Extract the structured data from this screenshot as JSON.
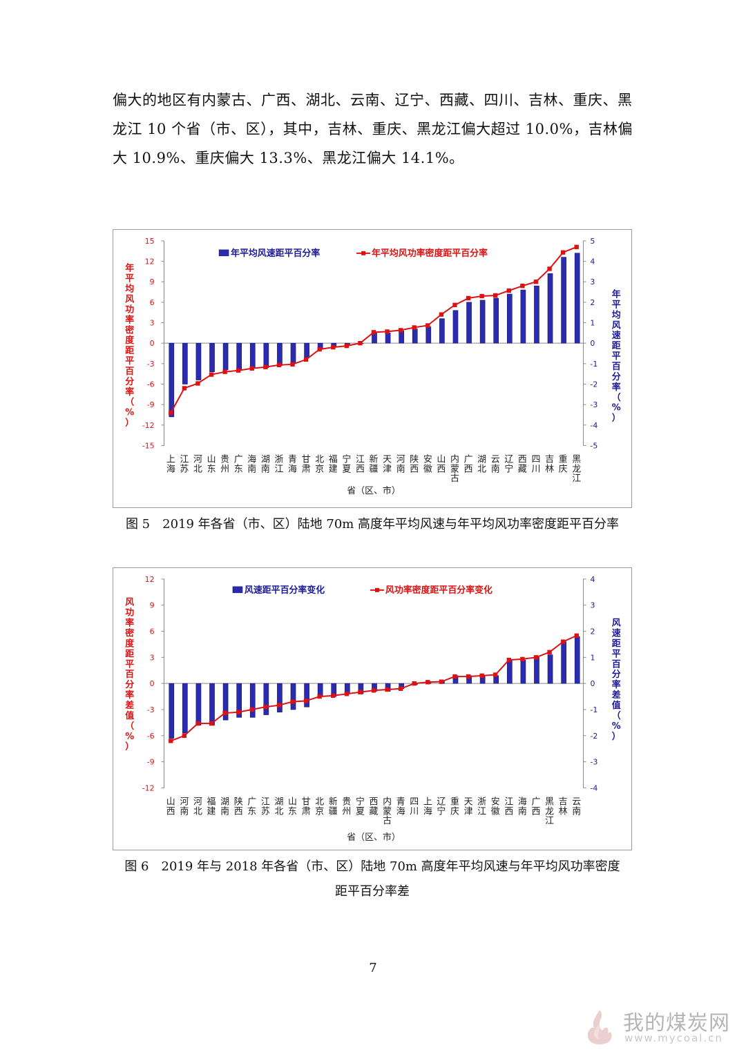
{
  "text": {
    "lines": [
      "偏大的地区有内蒙古、广西、湖北、云南、辽宁、西藏、四川、吉林、重庆、黑",
      "龙江 10 个省（市、区），其中，吉林、重庆、黑龙江偏大超过 10.0%，吉林偏",
      "大 10.9%、重庆偏大 13.3%、黑龙江偏大 14.1%。"
    ]
  },
  "captions": {
    "fig5": "图 5　2019 年各省（市、区）陆地 70m 高度年平均风速与年平均风功率密度距平百分率",
    "fig6_line1": "图 6　2019 年与 2018 年各省（市、区）陆地 70m 高度年平均风速与年平均风功率密度",
    "fig6_line2": "距平百分率差"
  },
  "page_number": "7",
  "watermark": {
    "name": "我的煤炭网",
    "url": "www.mycoal.cn"
  },
  "colors": {
    "bar": "#2b2bb0",
    "bar_edge": "#15156e",
    "line": "#dd1111",
    "left_axis_label": "#dd1111",
    "right_axis_label": "#1a1a99",
    "watermark": "#b5b5b5"
  },
  "chart_data": [
    {
      "type": "bar",
      "categories": [
        "上海",
        "江苏",
        "河北",
        "山东",
        "贵州",
        "广东",
        "海南",
        "湖南",
        "浙江",
        "青海",
        "甘肃",
        "北京",
        "福建",
        "宁夏",
        "江西",
        "新疆",
        "天津",
        "河南",
        "陕西",
        "安徽",
        "山西",
        "内蒙古",
        "广西",
        "湖北",
        "云南",
        "辽宁",
        "西藏",
        "四川",
        "吉林",
        "重庆",
        "黑龙江"
      ],
      "series": [
        {
          "name": "年平均风速距平百分率",
          "kind": "bar",
          "axis": "right",
          "values": [
            -3.6,
            -2.0,
            -1.8,
            -1.4,
            -1.3,
            -1.3,
            -1.2,
            -1.2,
            -1.1,
            -1.0,
            -0.7,
            -0.3,
            -0.2,
            -0.1,
            0.0,
            0.5,
            0.5,
            0.6,
            0.7,
            0.8,
            1.2,
            1.6,
            2.0,
            2.1,
            2.2,
            2.4,
            2.6,
            2.8,
            3.4,
            4.2,
            4.4
          ]
        },
        {
          "name": "年平均风功率密度距平百分率",
          "kind": "line",
          "axis": "left",
          "values": [
            -10.2,
            -6.6,
            -5.9,
            -4.6,
            -4.2,
            -4.0,
            -3.7,
            -3.5,
            -3.2,
            -3.1,
            -2.4,
            -0.9,
            -0.6,
            -0.4,
            0.0,
            1.6,
            1.7,
            1.9,
            2.3,
            2.6,
            4.2,
            5.6,
            6.6,
            6.9,
            7.0,
            7.7,
            8.4,
            9.0,
            10.9,
            13.3,
            14.1
          ]
        }
      ],
      "ylabel_left": "年平均风功率密度距平百分率（%）",
      "ylabel_right": "年平均风速距平百分率（%）",
      "xlabel": "省（区、市）",
      "ylim_left": [
        -15,
        15
      ],
      "yticks_left": [
        15,
        12,
        9,
        6,
        3,
        0,
        -3,
        -6,
        -9,
        -12,
        -15
      ],
      "ylim_right": [
        -5,
        5
      ],
      "yticks_right": [
        5,
        4,
        3,
        2,
        1,
        0,
        -1,
        -2,
        -3,
        -4,
        -5
      ],
      "grid": false,
      "legend": "top"
    },
    {
      "type": "bar",
      "categories": [
        "山西",
        "河南",
        "河北",
        "福建",
        "湖南",
        "陕西",
        "广东",
        "江苏",
        "湖北",
        "山东",
        "甘肃",
        "北京",
        "新疆",
        "贵州",
        "宁夏",
        "西藏",
        "内蒙古",
        "青海",
        "四川",
        "上海",
        "辽宁",
        "重庆",
        "天津",
        "浙江",
        "安徽",
        "江西",
        "海南",
        "广西",
        "黑龙江",
        "吉林",
        "云南"
      ],
      "series": [
        {
          "name": "风速距平百分率变化",
          "kind": "bar",
          "axis": "right",
          "values": [
            -2.1,
            -1.9,
            -1.6,
            -1.6,
            -1.4,
            -1.3,
            -1.3,
            -1.2,
            -1.1,
            -1.0,
            -0.9,
            -0.5,
            -0.5,
            -0.4,
            -0.4,
            -0.3,
            -0.3,
            -0.2,
            -0.05,
            0.05,
            0.1,
            0.3,
            0.3,
            0.3,
            0.3,
            0.9,
            0.9,
            1.0,
            1.1,
            1.6,
            1.8
          ]
        },
        {
          "name": "风功率密度距平百分率变化",
          "kind": "line",
          "axis": "left",
          "values": [
            -6.6,
            -6.0,
            -4.6,
            -4.6,
            -3.4,
            -3.3,
            -3.0,
            -2.7,
            -2.5,
            -2.1,
            -2.0,
            -1.5,
            -1.4,
            -1.2,
            -1.0,
            -0.8,
            -0.7,
            -0.6,
            0.0,
            0.15,
            0.2,
            0.8,
            0.8,
            0.9,
            1.0,
            2.7,
            2.8,
            3.0,
            3.6,
            4.8,
            5.5
          ]
        }
      ],
      "ylabel_left": "风功率密度距平百分率差值（%）",
      "ylabel_right": "风速距平百分率差值（%）",
      "xlabel": "省（区、市）",
      "ylim_left": [
        -12,
        12
      ],
      "yticks_left": [
        12,
        9,
        6,
        3,
        0,
        -3,
        -6,
        -9,
        -12
      ],
      "ylim_right": [
        -4,
        4
      ],
      "yticks_right": [
        4,
        3,
        2,
        1,
        0,
        -1,
        -2,
        -3,
        -4
      ],
      "grid": false,
      "legend": "top"
    }
  ]
}
